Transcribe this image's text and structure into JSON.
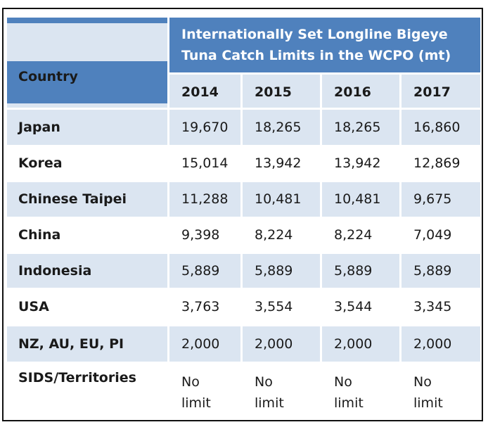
{
  "table": {
    "country_header": "Country",
    "title_lines": [
      "Internationally Set Longline Bigeye",
      "Tuna Catch Limits in the WCPO (mt)"
    ],
    "years": [
      "2014",
      "2015",
      "2016",
      "2017"
    ],
    "rows": [
      {
        "country": "Japan",
        "values": [
          "19,670",
          "18,265",
          "18,265",
          "16,860"
        ]
      },
      {
        "country": "Korea",
        "values": [
          "15,014",
          "13,942",
          "13,942",
          "12,869"
        ]
      },
      {
        "country": "Chinese Taipei",
        "values": [
          "11,288",
          "10,481",
          "10,481",
          "9,675"
        ]
      },
      {
        "country": "China",
        "values": [
          "9,398",
          "8,224",
          "8,224",
          "7,049"
        ]
      },
      {
        "country": "Indonesia",
        "values": [
          "5,889",
          "5,889",
          "5,889",
          "5,889"
        ]
      },
      {
        "country": "USA",
        "values": [
          "3,763",
          "3,554",
          "3,544",
          "3,345"
        ]
      },
      {
        "country": "NZ, AU, EU, PI",
        "values": [
          "2,000",
          "2,000",
          "2,000",
          "2,000"
        ]
      },
      {
        "country": "SIDS/Territories",
        "values": [
          "No limit",
          "No limit",
          "No limit",
          "No limit"
        ]
      }
    ]
  },
  "colors": {
    "header_blue": "#4f81bd",
    "light_blue": "#dbe5f1"
  }
}
